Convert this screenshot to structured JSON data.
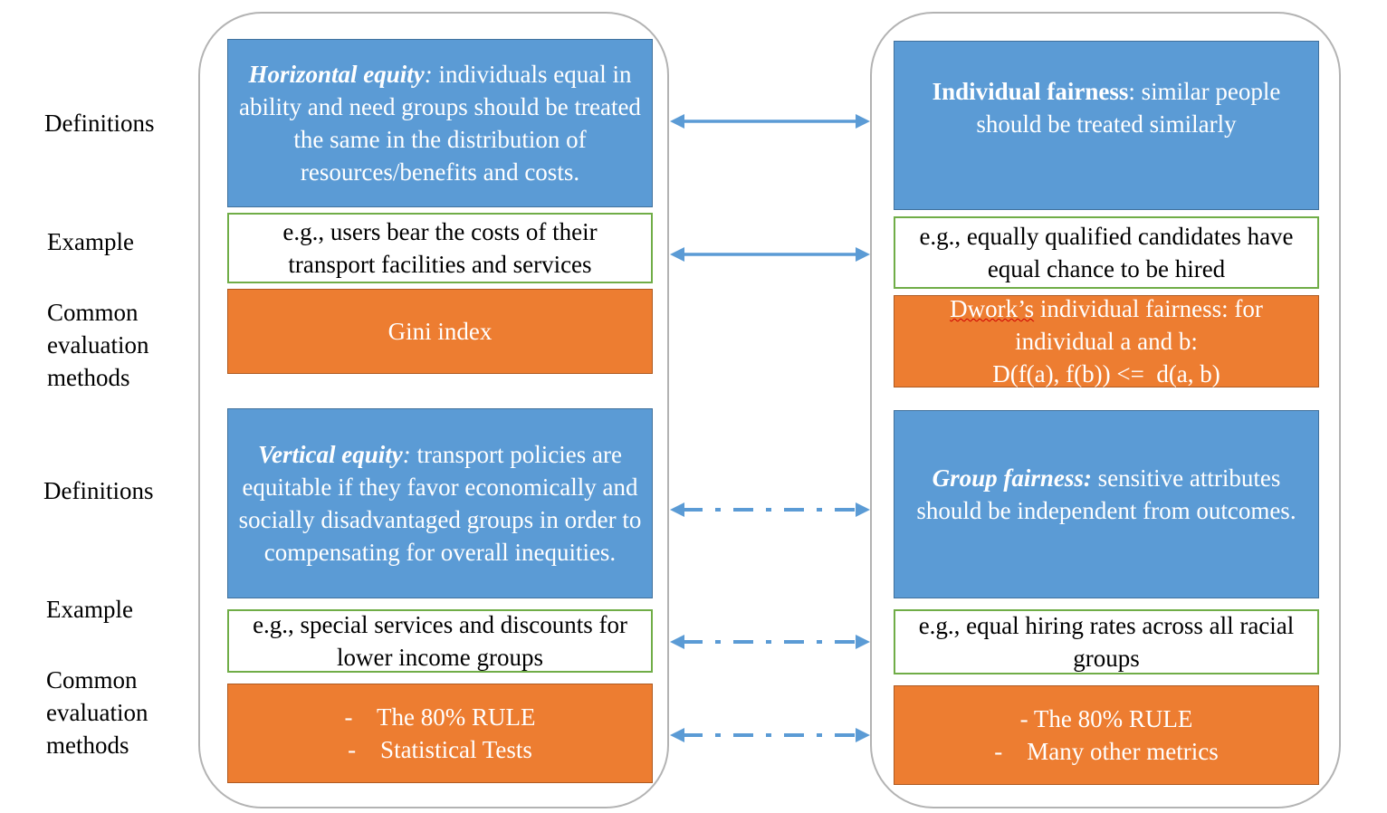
{
  "row_labels": {
    "definitions_top": "Definitions",
    "example_top": "Example",
    "common_top": [
      "Common",
      "evaluation",
      "methods"
    ],
    "definitions_bottom": "Definitions",
    "example_bottom": "Example",
    "common_bottom": [
      "Common",
      "evaluation",
      "methods"
    ]
  },
  "left": {
    "horizontal_def": {
      "term": "Horizontal equity",
      "colon": ":",
      "text": " individuals equal in ability and need groups should be treated the same in the distribution of resources/benefits and costs."
    },
    "horizontal_example": "e.g., users bear the costs of their transport facilities and services",
    "horizontal_eval": "Gini index",
    "vertical_def": {
      "term": "Vertical equity",
      "colon": ":",
      "text": " transport policies are equitable if they favor economically and socially disadvantaged groups in order to compensating for overall inequities."
    },
    "vertical_example": "e.g., special services and discounts for lower income groups",
    "vertical_eval": [
      "-    The 80% RULE",
      "-    Statistical Tests"
    ]
  },
  "right": {
    "individual_def": {
      "term": "Individual fairness",
      "text": ": similar people should be treated similarly"
    },
    "individual_example": "e.g., equally qualified candidates have equal chance to be hired",
    "individual_eval": {
      "name": "Dwork’s",
      "line1_rest": " individual fairness: for",
      "line2": "individual a and b:",
      "line3": "D(f(a), f(b)) <=  d(a, b)"
    },
    "group_def": {
      "term": "Group fairness:",
      "text": " sensitive attributes should be independent from outcomes."
    },
    "group_example": "e.g., equal hiring rates across all racial groups",
    "group_eval": [
      "- The 80% RULE",
      "-    Many other metrics"
    ]
  },
  "colors": {
    "definition_fill": "#5b9bd5",
    "example_border": "#70ad47",
    "evaluation_fill": "#ed7d31",
    "arrow": "#5b9bd5",
    "panel_border": "#b3b3b3"
  }
}
